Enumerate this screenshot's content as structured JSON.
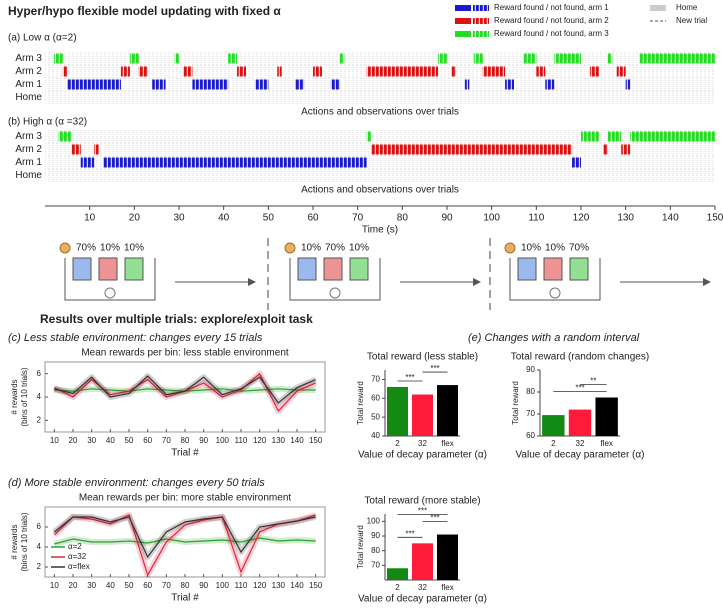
{
  "header": {
    "title": "Hyper/hypo flexible model updating with fixed α",
    "results_title": "Results over multiple trials: explore/exploit task"
  },
  "legend": {
    "items": [
      "Reward found / not found, arm 1",
      "Reward found / not found, arm 2",
      "Reward found / not found, arm 3"
    ],
    "home": "Home",
    "new_trial": "New trial"
  },
  "panels": {
    "a": "(a) Low α (α=2)",
    "b": "(b) High α (α =32)",
    "c": "(c) Less stable environment: changes every 15 trials",
    "d": "(d) More stable environment: changes every 50 trials",
    "e": "(e) Changes with a random interval"
  },
  "schedules": [
    [
      "70%",
      "10%",
      "10%"
    ],
    [
      "10%",
      "70%",
      "10%"
    ],
    [
      "10%",
      "10%",
      "70%"
    ]
  ],
  "chart_data": [
    {
      "type": "raster",
      "caption": "Actions and observations over trials",
      "categories": [
        "Home",
        "Arm 1",
        "Arm 2",
        "Arm 3"
      ],
      "row_colors": [
        "#cccccc",
        "#1a1acc",
        "#dd1111",
        "#22dd22"
      ],
      "xlim": [
        0,
        150
      ],
      "segments": [
        {
          "arm": 3,
          "start": 2,
          "end": 4
        },
        {
          "arm": 2,
          "start": 4,
          "end": 5
        },
        {
          "arm": 1,
          "start": 5,
          "end": 17
        },
        {
          "arm": 2,
          "start": 17,
          "end": 19
        },
        {
          "arm": 3,
          "start": 19,
          "end": 21
        },
        {
          "arm": 2,
          "start": 21,
          "end": 23
        },
        {
          "arm": 1,
          "start": 24,
          "end": 27
        },
        {
          "arm": 3,
          "start": 29,
          "end": 30
        },
        {
          "arm": 2,
          "start": 31,
          "end": 33
        },
        {
          "arm": 1,
          "start": 33,
          "end": 41
        },
        {
          "arm": 3,
          "start": 41,
          "end": 43
        },
        {
          "arm": 2,
          "start": 43,
          "end": 45
        },
        {
          "arm": 1,
          "start": 47,
          "end": 50
        },
        {
          "arm": 2,
          "start": 52,
          "end": 53
        },
        {
          "arm": 1,
          "start": 56,
          "end": 58
        },
        {
          "arm": 2,
          "start": 60,
          "end": 62
        },
        {
          "arm": 1,
          "start": 64,
          "end": 66
        },
        {
          "arm": 3,
          "start": 66,
          "end": 67
        },
        {
          "arm": 2,
          "start": 72,
          "end": 88
        },
        {
          "arm": 3,
          "start": 88,
          "end": 90
        },
        {
          "arm": 2,
          "start": 91,
          "end": 92
        },
        {
          "arm": 1,
          "start": 94,
          "end": 95
        },
        {
          "arm": 3,
          "start": 96,
          "end": 98
        },
        {
          "arm": 2,
          "start": 98,
          "end": 103
        },
        {
          "arm": 1,
          "start": 103,
          "end": 105
        },
        {
          "arm": 3,
          "start": 107,
          "end": 110
        },
        {
          "arm": 2,
          "start": 110,
          "end": 112
        },
        {
          "arm": 1,
          "start": 112,
          "end": 114
        },
        {
          "arm": 3,
          "start": 114,
          "end": 120
        },
        {
          "arm": 2,
          "start": 122,
          "end": 124
        },
        {
          "arm": 3,
          "start": 126,
          "end": 127
        },
        {
          "arm": 2,
          "start": 128,
          "end": 130
        },
        {
          "arm": 1,
          "start": 130,
          "end": 131
        },
        {
          "arm": 3,
          "start": 133,
          "end": 150
        }
      ]
    },
    {
      "type": "raster",
      "caption": "Actions and observations over trials",
      "xlabel": "Time (s)",
      "categories": [
        "Home",
        "Arm 1",
        "Arm 2",
        "Arm 3"
      ],
      "row_colors": [
        "#cccccc",
        "#1a1acc",
        "#dd1111",
        "#22dd22"
      ],
      "xlim": [
        0,
        150
      ],
      "xticks": [
        10,
        20,
        30,
        40,
        50,
        60,
        70,
        80,
        90,
        100,
        110,
        120,
        130,
        140,
        150
      ],
      "segments": [
        {
          "arm": 3,
          "start": 3,
          "end": 6
        },
        {
          "arm": 2,
          "start": 6,
          "end": 8
        },
        {
          "arm": 1,
          "start": 8,
          "end": 11
        },
        {
          "arm": 2,
          "start": 11,
          "end": 12
        },
        {
          "arm": 1,
          "start": 13,
          "end": 72
        },
        {
          "arm": 3,
          "start": 72,
          "end": 73
        },
        {
          "arm": 2,
          "start": 73,
          "end": 118
        },
        {
          "arm": 1,
          "start": 118,
          "end": 120
        },
        {
          "arm": 3,
          "start": 120,
          "end": 124
        },
        {
          "arm": 2,
          "start": 125,
          "end": 126
        },
        {
          "arm": 3,
          "start": 126,
          "end": 129
        },
        {
          "arm": 2,
          "start": 129,
          "end": 131
        },
        {
          "arm": 3,
          "start": 131,
          "end": 150
        }
      ]
    },
    {
      "type": "line",
      "title": "Mean rewards per bin: less stable environment",
      "ylabel": [
        "# rewards",
        "(bins of 10 trials)"
      ],
      "xlabel": "Trial #",
      "x": [
        10,
        20,
        30,
        40,
        50,
        60,
        70,
        80,
        90,
        100,
        110,
        120,
        130,
        140,
        150
      ],
      "xlim": [
        5,
        155
      ],
      "xticks": [
        10,
        20,
        30,
        40,
        50,
        60,
        70,
        80,
        90,
        100,
        110,
        120,
        130,
        140,
        150
      ],
      "ylim": [
        1,
        7
      ],
      "yticks": [
        2,
        4,
        6
      ],
      "series": [
        {
          "color": "#2ca02c",
          "values": [
            4.6,
            4.5,
            4.7,
            4.6,
            4.5,
            4.7,
            4.6,
            4.5,
            4.6,
            4.7,
            4.5,
            4.6,
            4.7,
            4.6,
            4.6
          ]
        },
        {
          "color": "#e8213c",
          "values": [
            4.8,
            4.0,
            5.5,
            4.2,
            4.5,
            5.5,
            4.0,
            4.5,
            5.2,
            4.0,
            4.6,
            6.0,
            2.8,
            4.5,
            5.2
          ]
        },
        {
          "color": "#333333",
          "values": [
            4.7,
            4.3,
            5.7,
            4.0,
            4.3,
            5.8,
            4.2,
            4.5,
            5.7,
            4.2,
            4.7,
            5.7,
            3.5,
            4.8,
            5.5
          ]
        }
      ]
    },
    {
      "type": "line",
      "title": "Mean rewards per bin: more stable environment",
      "ylabel": [
        "# rewards",
        "(bins of 10 trials)"
      ],
      "xlabel": "Trial #",
      "legend": "lower left",
      "x": [
        10,
        20,
        30,
        40,
        50,
        60,
        70,
        80,
        90,
        100,
        110,
        120,
        130,
        140,
        150
      ],
      "xlim": [
        5,
        155
      ],
      "xticks": [
        10,
        20,
        30,
        40,
        50,
        60,
        70,
        80,
        90,
        100,
        110,
        120,
        130,
        140,
        150
      ],
      "ylim": [
        1,
        8
      ],
      "yticks": [
        2,
        4,
        6
      ],
      "series": [
        {
          "name": "α=2",
          "color": "#2ca02c",
          "values": [
            4.3,
            4.8,
            4.5,
            4.5,
            4.6,
            4.4,
            4.8,
            4.5,
            4.6,
            4.7,
            4.5,
            4.9,
            4.6,
            4.7,
            4.6
          ]
        },
        {
          "name": "α=32",
          "color": "#e8213c",
          "values": [
            5.2,
            7.0,
            6.8,
            6.3,
            7.2,
            1.2,
            4.5,
            6.2,
            6.7,
            7.0,
            1.5,
            5.5,
            6.3,
            6.6,
            7.2
          ]
        },
        {
          "name": "α=flex",
          "color": "#333333",
          "values": [
            5.5,
            7.0,
            7.0,
            6.5,
            7.0,
            3.0,
            5.5,
            6.5,
            6.8,
            7.0,
            3.5,
            6.0,
            6.3,
            6.6,
            7.0
          ]
        }
      ]
    },
    {
      "type": "bar",
      "title": "Total reward (less stable)",
      "ylabel": "Total reward",
      "xlabel": "Value of decay parameter (α)",
      "categories": [
        "2",
        "32",
        "flex"
      ],
      "values": [
        66,
        62,
        67
      ],
      "colors": [
        "#138a13",
        "#ff1a3c",
        "#000000"
      ],
      "ylim": [
        40,
        75
      ],
      "yticks": [
        40,
        50,
        60,
        70
      ],
      "significance": [
        {
          "from": "2",
          "to": "32",
          "label": "***"
        },
        {
          "from": "32",
          "to": "flex",
          "label": "***"
        }
      ]
    },
    {
      "type": "bar",
      "title": "Total reward (random changes)",
      "ylabel": "Total reward",
      "xlabel": "Value of decay parameter (α)",
      "categories": [
        "2",
        "32",
        "flex"
      ],
      "values": [
        69.5,
        72,
        77.5
      ],
      "colors": [
        "#138a13",
        "#ff1a3c",
        "#000000"
      ],
      "ylim": [
        60,
        90
      ],
      "yticks": [
        60,
        70,
        80,
        90
      ],
      "significance": [
        {
          "from": "2",
          "to": "flex",
          "label": "***"
        },
        {
          "from": "32",
          "to": "flex",
          "label": "**"
        }
      ]
    },
    {
      "type": "bar",
      "title": "Total reward (more stable)",
      "ylabel": "Total reward",
      "xlabel": "Value of decay parameter (α)",
      "categories": [
        "2",
        "32",
        "flex"
      ],
      "values": [
        68,
        85,
        91
      ],
      "colors": [
        "#138a13",
        "#ff1a3c",
        "#000000"
      ],
      "ylim": [
        60,
        105
      ],
      "yticks": [
        70,
        80,
        90,
        100
      ],
      "significance": [
        {
          "from": "2",
          "to": "32",
          "label": "***"
        },
        {
          "from": "32",
          "to": "flex",
          "label": "***"
        },
        {
          "from": "2",
          "to": "flex",
          "label": "***"
        }
      ]
    }
  ]
}
